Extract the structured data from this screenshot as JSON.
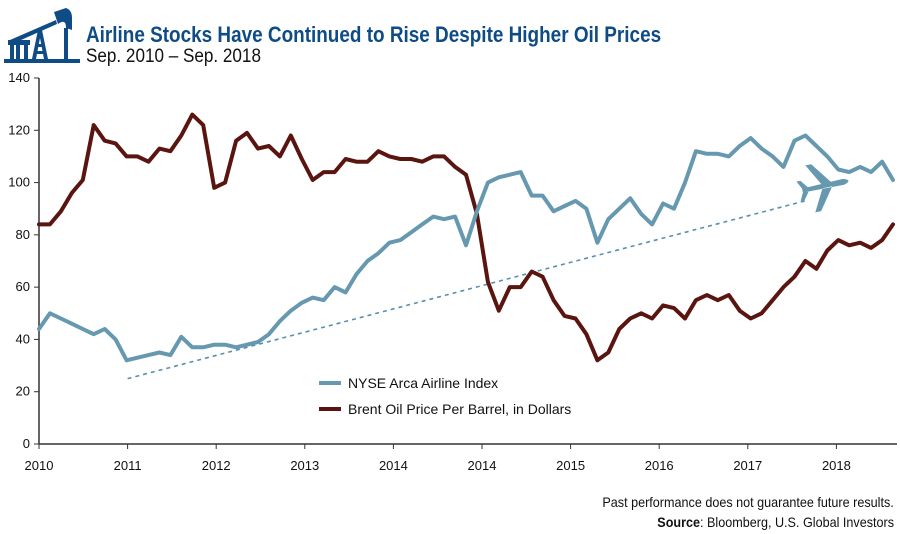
{
  "header": {
    "title": "Airline Stocks Have Continued to Rise Despite Higher Oil Prices",
    "subtitle": "Sep. 2010 – Sep. 2018",
    "logo_icon": "oil-pumpjack-icon"
  },
  "footer": {
    "disclaimer": "Past performance does not guarantee future results.",
    "source_label": "Source",
    "source_text": ": Bloomberg, U.S. Global Investors"
  },
  "chart_data": {
    "type": "line",
    "title": "Airline Stocks Have Continued to Rise Despite Higher Oil Prices",
    "subtitle": "Sep. 2010 – Sep. 2018",
    "x_tick_labels": [
      "2010",
      "2011",
      "2012",
      "2013",
      "2014",
      "2014",
      "2015",
      "2016",
      "2017",
      "2018"
    ],
    "y_ticks": [
      0,
      20,
      40,
      60,
      80,
      100,
      120,
      140
    ],
    "ylim": [
      0,
      140
    ],
    "grid": false,
    "legend_position": "bottom-center",
    "series": [
      {
        "name": "NYSE Arca Airline Index",
        "color": "#6699b0",
        "values": [
          44,
          50,
          48,
          46,
          44,
          42,
          44,
          40,
          32,
          33,
          34,
          35,
          34,
          41,
          37,
          37,
          38,
          38,
          37,
          38,
          39,
          42,
          47,
          51,
          54,
          56,
          55,
          60,
          58,
          65,
          70,
          73,
          77,
          78,
          81,
          84,
          87,
          86,
          87,
          76,
          89,
          100,
          102,
          103,
          104,
          95,
          95,
          89,
          91,
          93,
          90,
          77,
          86,
          90,
          94,
          88,
          84,
          92,
          90,
          100,
          112,
          111,
          111,
          110,
          114,
          117,
          113,
          110,
          106,
          116,
          118,
          114,
          110,
          105,
          104,
          106,
          104,
          108,
          101
        ]
      },
      {
        "name": "Brent Oil Price Per Barrel, in Dollars",
        "color": "#5a1510",
        "values": [
          84,
          84,
          89,
          96,
          101,
          122,
          116,
          115,
          110,
          110,
          108,
          113,
          112,
          118,
          126,
          122,
          98,
          100,
          116,
          119,
          113,
          114,
          110,
          118,
          109,
          101,
          104,
          104,
          109,
          108,
          108,
          112,
          110,
          109,
          109,
          108,
          110,
          110,
          106,
          103,
          88,
          62,
          51,
          60,
          60,
          66,
          64,
          55,
          49,
          48,
          42,
          32,
          35,
          44,
          48,
          50,
          48,
          53,
          52,
          48,
          55,
          57,
          55,
          57,
          51,
          48,
          50,
          55,
          60,
          64,
          70,
          67,
          74,
          78,
          76,
          77,
          75,
          78,
          84
        ]
      }
    ],
    "trendline": {
      "color": "#5b8fad",
      "style": "dashed",
      "start_value": 25,
      "end_value": 93
    },
    "annotation_icon": "airplane-icon"
  }
}
